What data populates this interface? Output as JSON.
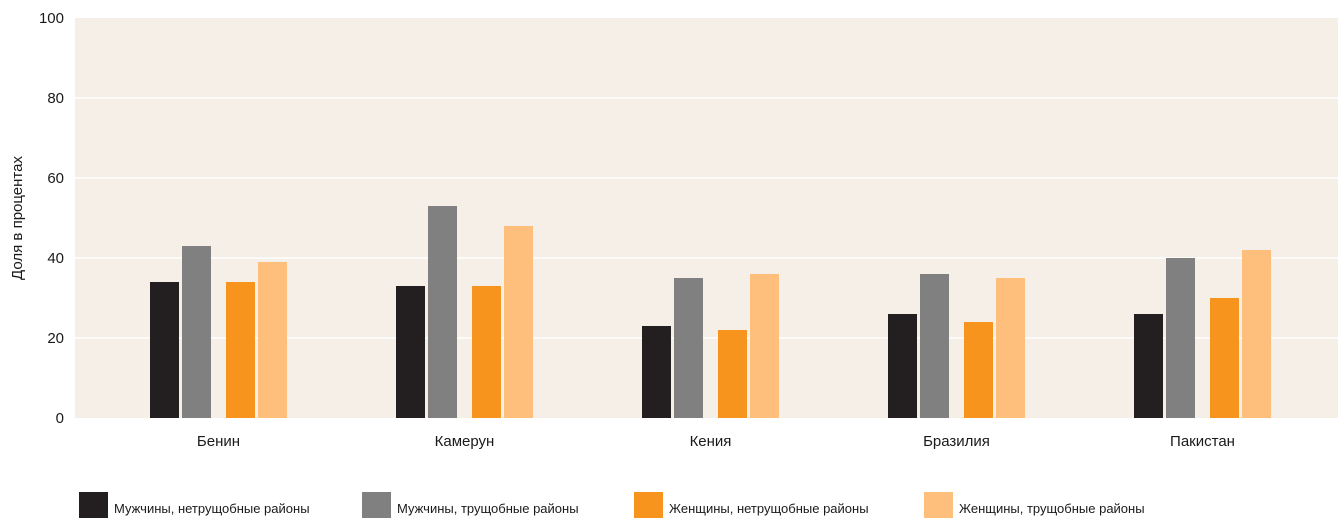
{
  "chart_data": {
    "type": "bar",
    "title": "",
    "xlabel": "",
    "ylabel": "Доля в процентах",
    "ylim": [
      0,
      100
    ],
    "yticks": [
      0,
      20,
      40,
      60,
      80,
      100
    ],
    "grid": true,
    "legend_position": "bottom",
    "categories": [
      "Бенин",
      "Камерун",
      "Кения",
      "Бразилия",
      "Пакистан"
    ],
    "series": [
      {
        "name": "Мужчины, нетрущобные районы",
        "color": "#231f20",
        "values": [
          34,
          33,
          23,
          26,
          26
        ]
      },
      {
        "name": "Мужчины, трущобные районы",
        "color": "#808080",
        "values": [
          43,
          53,
          35,
          36,
          40
        ]
      },
      {
        "name": "Женщины, нетрущобные районы",
        "color": "#f7941d",
        "values": [
          34,
          33,
          22,
          24,
          30
        ]
      },
      {
        "name": "Женщины, трущобные районы",
        "color": "#fdbf7b",
        "values": [
          39,
          48,
          36,
          35,
          42
        ]
      }
    ],
    "plot_background": "#f5efe8",
    "grid_color": "#ffffff"
  }
}
